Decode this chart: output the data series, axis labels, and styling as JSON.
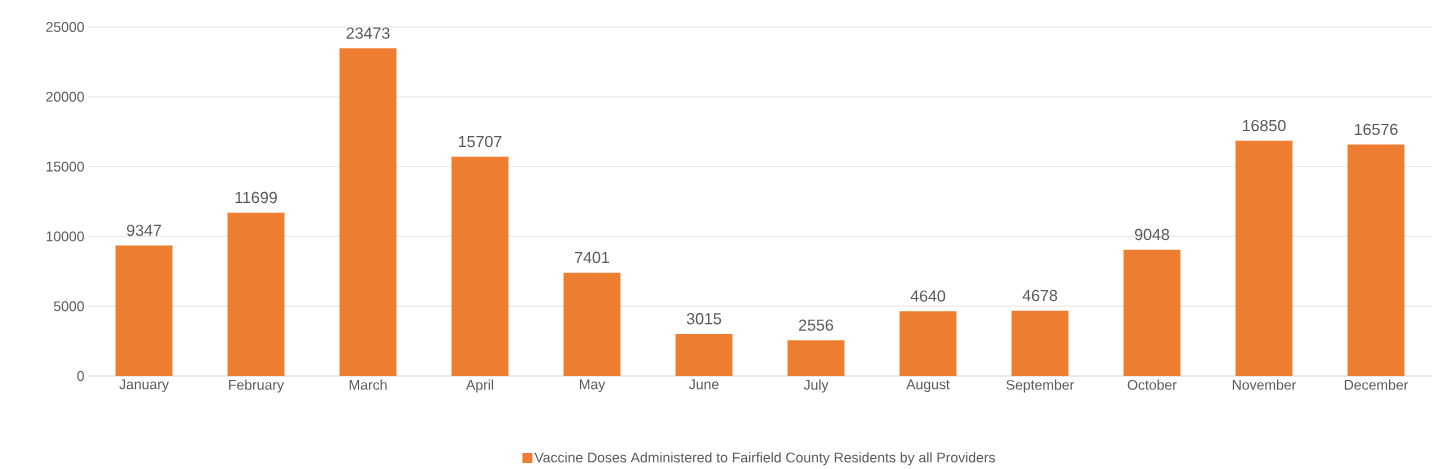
{
  "chart_data": {
    "type": "bar",
    "categories": [
      "January",
      "February",
      "March",
      "April",
      "May",
      "June",
      "July",
      "August",
      "September",
      "October",
      "November",
      "December"
    ],
    "series": [
      {
        "name": "Vaccine Doses Administered to Fairfield County Residents by all Providers",
        "color": "#ed7d31",
        "values": [
          9347,
          11699,
          23473,
          15707,
          7401,
          3015,
          2556,
          4640,
          4678,
          9048,
          16850,
          16576
        ]
      }
    ],
    "ylim": [
      0,
      25000
    ],
    "yticks": [
      0,
      5000,
      10000,
      15000,
      20000,
      25000
    ],
    "grid": "y",
    "legend": "bottom",
    "data_labels": true
  }
}
